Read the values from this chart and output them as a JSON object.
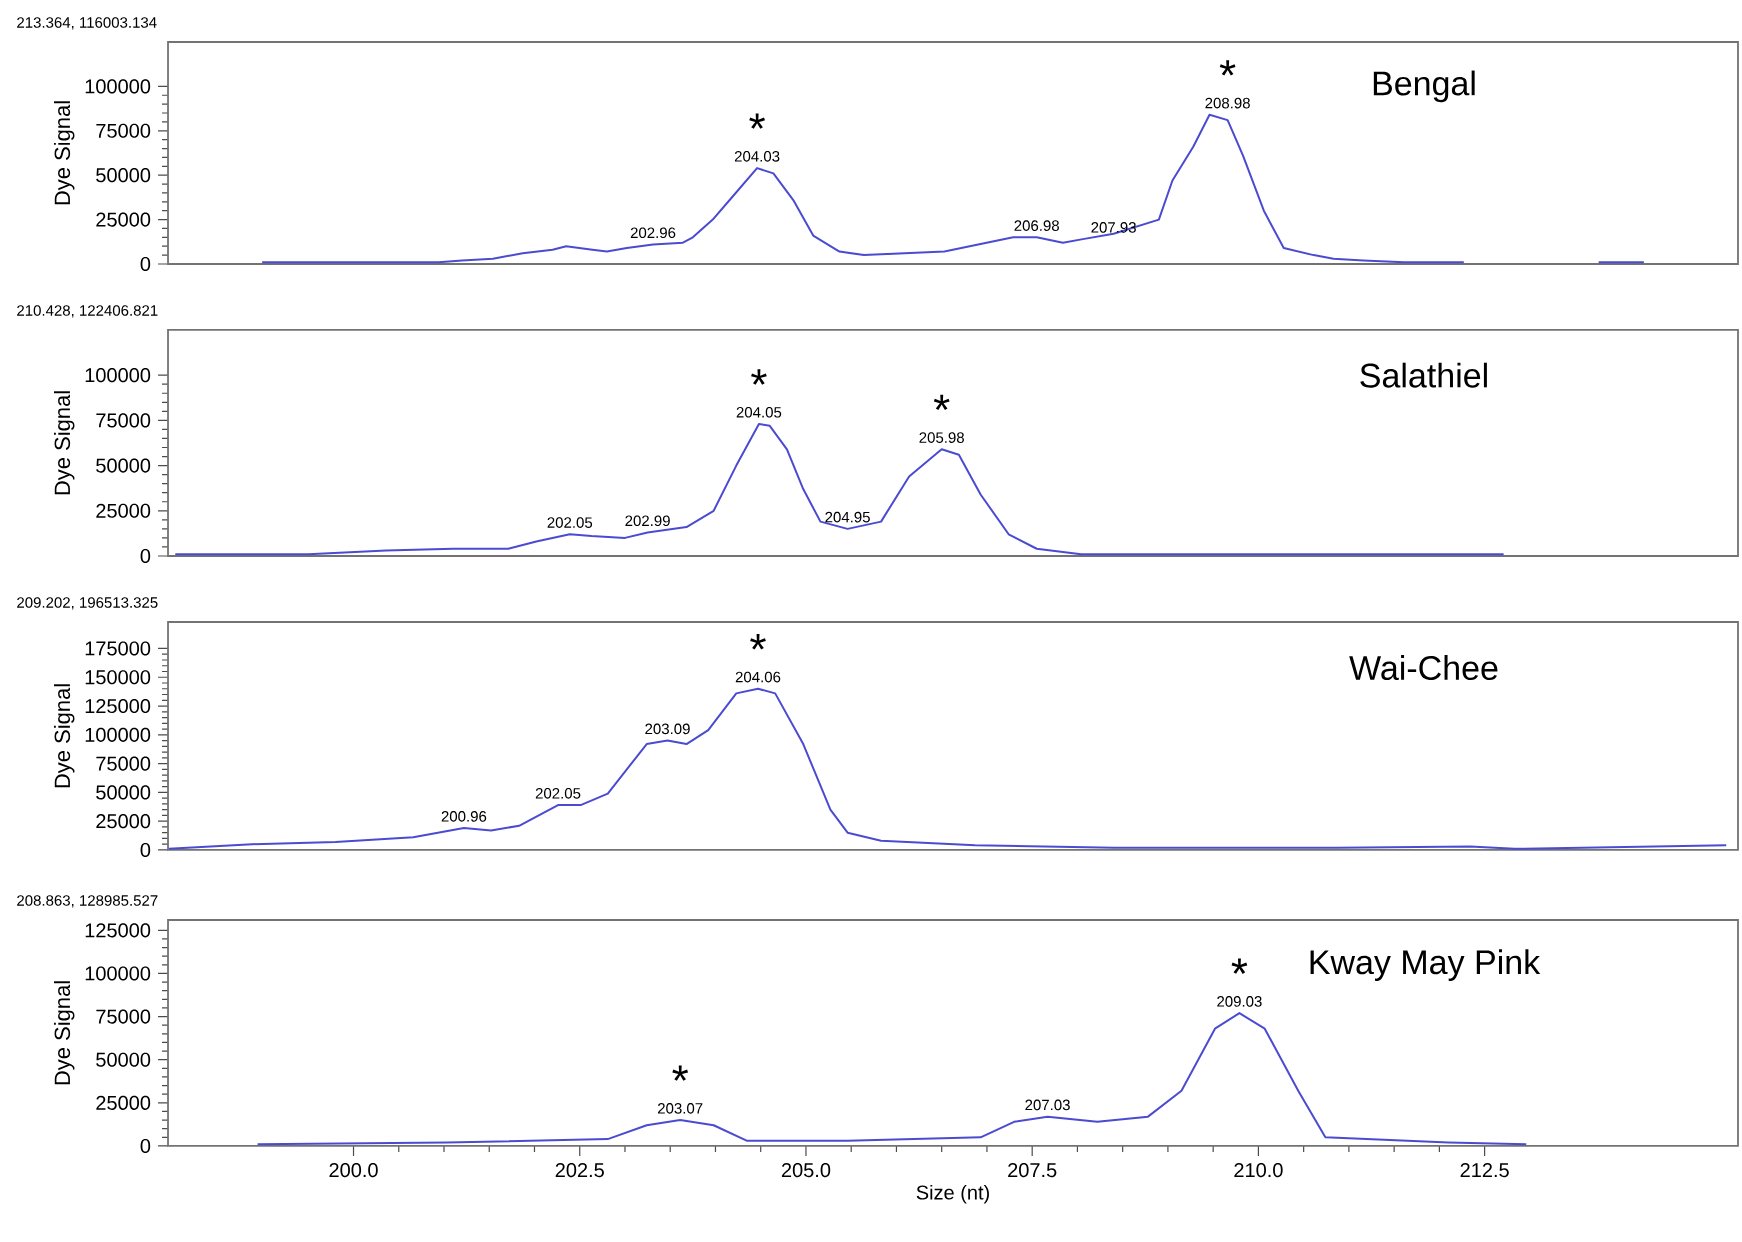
{
  "chart_data": [
    {
      "type": "line",
      "title": "Bengal",
      "ylabel": "Dye Signal",
      "xlim": [
        197.95,
        215.3
      ],
      "ylim": [
        0,
        125000
      ],
      "yticks": [
        0,
        25000,
        50000,
        75000,
        100000
      ],
      "tick_labels": "y",
      "color": "#4b4bd2",
      "x": [
        198.99,
        200.94,
        201.2,
        201.54,
        201.87,
        202.2,
        202.35,
        202.64,
        202.8,
        203.02,
        203.31,
        203.64,
        203.75,
        203.97,
        204.19,
        204.46,
        204.64,
        204.86,
        205.08,
        205.37,
        205.64,
        206.09,
        206.53,
        206.91,
        207.29,
        207.55,
        207.84,
        208.06,
        208.4,
        208.9,
        209.05,
        209.28,
        209.46,
        209.66,
        209.83,
        210.06,
        210.28,
        210.61,
        210.83,
        211.16,
        211.61,
        212.05,
        212.27,
        212.5,
        213.76,
        214.26
      ],
      "values": [
        1000,
        1000,
        2000,
        3000,
        6000,
        8000,
        10000,
        8000,
        7000,
        9000,
        11000,
        12000,
        15000,
        25000,
        38000,
        54000,
        51000,
        36000,
        16000,
        7000,
        5000,
        6000,
        7000,
        11000,
        15000,
        15000,
        12000,
        14000,
        17000,
        25000,
        47000,
        66000,
        84000,
        81000,
        61000,
        30000,
        9000,
        5000,
        3000,
        2000,
        1000,
        1000,
        1000,
        null,
        1000,
        1000
      ],
      "annotations": [
        "213.364, 116003.134",
        {
          "text": "202.96",
          "x": 203.31,
          "y": 11000
        },
        {
          "text": "*",
          "x": 204.46,
          "y": 54000
        },
        {
          "text": "204.03",
          "x": 204.46,
          "y": 54000
        },
        {
          "text": "206.98",
          "x": 207.55,
          "y": 15000
        },
        {
          "text": "207.93",
          "x": 208.4,
          "y": 14000
        },
        {
          "text": "*",
          "x": 209.66,
          "y": 84000
        },
        {
          "text": "208.98",
          "x": 209.66,
          "y": 84000
        }
      ]
    },
    {
      "type": "line",
      "title": "Salathiel",
      "ylabel": "Dye Signal",
      "xlim": [
        197.95,
        215.3
      ],
      "ylim": [
        0,
        125000
      ],
      "yticks": [
        0,
        25000,
        50000,
        75000,
        100000
      ],
      "tick_labels": "y",
      "color": "#4b4bd2",
      "x": [
        198.03,
        199.5,
        200.36,
        201.1,
        201.71,
        202.02,
        202.39,
        202.63,
        203.0,
        203.25,
        203.68,
        203.98,
        204.23,
        204.48,
        204.6,
        204.79,
        204.97,
        205.16,
        205.46,
        205.83,
        206.14,
        206.5,
        206.69,
        206.93,
        207.24,
        207.55,
        208.04,
        209.76,
        210.25,
        212.71
      ],
      "values": [
        1000,
        1000,
        3000,
        4000,
        4000,
        8000,
        12000,
        11000,
        10000,
        13000,
        16000,
        25000,
        50000,
        73000,
        72000,
        59000,
        37000,
        19000,
        15000,
        19000,
        44000,
        59000,
        56000,
        34000,
        12000,
        4000,
        1000,
        1000,
        1000,
        1000
      ],
      "annotations": [
        "210.428, 122406.821",
        {
          "text": "202.05",
          "x": 202.39,
          "y": 12000
        },
        {
          "text": "202.99",
          "x": 203.25,
          "y": 13000
        },
        {
          "text": "*",
          "x": 204.48,
          "y": 73000
        },
        {
          "text": "204.05",
          "x": 204.48,
          "y": 73000
        },
        {
          "text": "204.95",
          "x": 205.46,
          "y": 15000
        },
        {
          "text": "*",
          "x": 206.5,
          "y": 59000
        },
        {
          "text": "205.98",
          "x": 206.5,
          "y": 59000
        }
      ]
    },
    {
      "type": "line",
      "title": "Wai-Chee",
      "ylabel": "Dye Signal",
      "xlim": [
        197.95,
        215.3
      ],
      "ylim": [
        0,
        198000
      ],
      "yticks": [
        0,
        25000,
        50000,
        75000,
        100000,
        125000,
        150000,
        175000
      ],
      "tick_labels": "y",
      "color": "#4b4bd2",
      "x": [
        197.96,
        198.88,
        199.8,
        200.66,
        201.22,
        201.52,
        201.83,
        202.26,
        202.51,
        202.81,
        203.24,
        203.47,
        203.68,
        203.92,
        204.23,
        204.47,
        204.66,
        204.97,
        205.27,
        205.46,
        205.83,
        206.87,
        208.41,
        210.87,
        212.34,
        212.83,
        215.17
      ],
      "values": [
        1000,
        5000,
        7000,
        11000,
        19000,
        17000,
        21000,
        39000,
        39000,
        49000,
        92000,
        95000,
        92000,
        104000,
        136000,
        140000,
        136000,
        92000,
        35000,
        15000,
        8000,
        4000,
        2000,
        2000,
        3000,
        1000,
        4000
      ],
      "annotations": [
        "209.202, 196513.325",
        {
          "text": "200.96",
          "x": 201.22,
          "y": 19000
        },
        {
          "text": "202.05",
          "x": 202.26,
          "y": 39000
        },
        {
          "text": "203.09",
          "x": 203.47,
          "y": 95000
        },
        {
          "text": "*",
          "x": 204.47,
          "y": 140000
        },
        {
          "text": "204.06",
          "x": 204.47,
          "y": 140000
        }
      ]
    },
    {
      "type": "line",
      "title": "Kway May Pink",
      "ylabel": "Dye Signal",
      "xlabel": "Size (nt)",
      "xlim": [
        197.95,
        215.3
      ],
      "ylim": [
        0,
        131000
      ],
      "yticks": [
        0,
        25000,
        50000,
        75000,
        100000,
        125000
      ],
      "xticks": [
        {
          "value": 200,
          "label": "200.0"
        },
        {
          "value": 202.5,
          "label": "202.5"
        },
        {
          "value": 205,
          "label": "205.0"
        },
        {
          "value": 207.5,
          "label": "207.5"
        },
        {
          "value": 210,
          "label": "210.0"
        },
        {
          "value": 212.5,
          "label": "212.5"
        }
      ],
      "color": "#4b4bd2",
      "x": [
        198.94,
        201.03,
        202.81,
        203.24,
        203.61,
        203.98,
        204.35,
        205.46,
        206.93,
        207.3,
        207.67,
        208.22,
        208.78,
        209.15,
        209.52,
        209.79,
        210.07,
        210.44,
        210.74,
        212.1,
        212.96
      ],
      "values": [
        1000,
        2000,
        4000,
        12000,
        15000,
        12000,
        3000,
        3000,
        5000,
        14000,
        17000,
        14000,
        17000,
        32000,
        68000,
        77000,
        68000,
        32000,
        5000,
        2000,
        1000
      ],
      "annotations": [
        "208.863, 128985.527",
        {
          "text": "*",
          "x": 203.61,
          "y": 15000
        },
        {
          "text": "203.07",
          "x": 203.61,
          "y": 15000
        },
        {
          "text": "207.03",
          "x": 207.67,
          "y": 17000
        },
        {
          "text": "*",
          "x": 209.79,
          "y": 77000
        },
        {
          "text": "209.03",
          "x": 209.79,
          "y": 77000
        }
      ]
    }
  ]
}
